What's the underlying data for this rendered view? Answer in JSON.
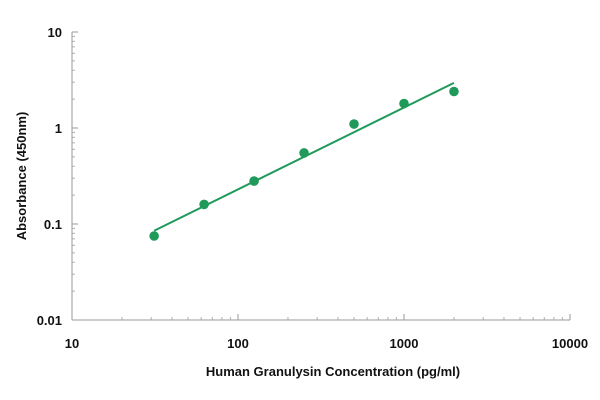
{
  "chart_data": {
    "type": "scatter",
    "title": "",
    "xlabel": "Human Granulysin Concentration (pg/ml)",
    "ylabel": "Absorbance (450nm)",
    "x_scale": "log",
    "y_scale": "log",
    "xlim": [
      10,
      10000
    ],
    "ylim": [
      0.01,
      10
    ],
    "x_ticks": [
      10,
      100,
      1000,
      10000
    ],
    "x_tick_labels": [
      "10",
      "100",
      "1000",
      "10000"
    ],
    "y_ticks": [
      0.01,
      0.1,
      1,
      10
    ],
    "y_tick_labels": [
      "0.01",
      "0.1",
      "1",
      "10"
    ],
    "grid": false,
    "legend": "none",
    "color": "#1f9a5a",
    "series": [
      {
        "points": [
          {
            "x": 31.25,
            "y": 0.075
          },
          {
            "x": 62.5,
            "y": 0.16
          },
          {
            "x": 125,
            "y": 0.28
          },
          {
            "x": 250,
            "y": 0.55
          },
          {
            "x": 500,
            "y": 1.1
          },
          {
            "x": 1000,
            "y": 1.8
          },
          {
            "x": 2000,
            "y": 2.4
          }
        ]
      }
    ],
    "fit_line": {
      "x": [
        31.25,
        2000
      ],
      "y": [
        0.085,
        2.95
      ]
    }
  }
}
